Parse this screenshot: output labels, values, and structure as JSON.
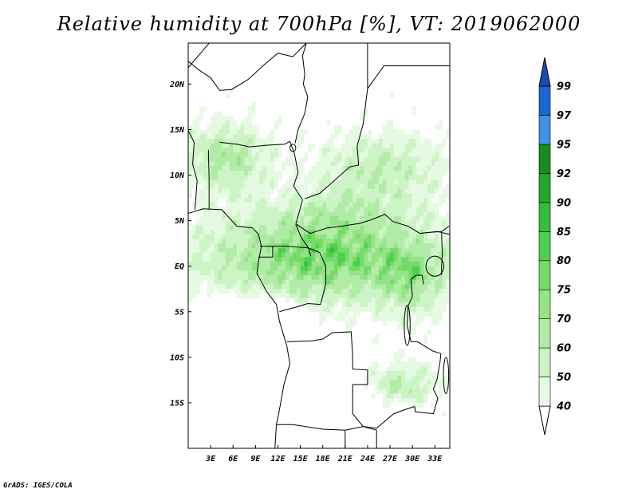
{
  "title": "Relative humidity at 700hPa [%], VT: 2019062000",
  "footer": "GrADS: IGES/COLA",
  "chart_data": {
    "type": "heatmap",
    "title": "Relative humidity at 700hPa [%], VT: 2019062000",
    "variable": "Relative humidity at 700hPa",
    "units": "%",
    "valid_time": "2019062000",
    "lon_range": [
      0,
      35
    ],
    "lat_range": [
      -20,
      24.5
    ],
    "x_ticks": [
      {
        "value": 3,
        "label": "3E"
      },
      {
        "value": 6,
        "label": "6E"
      },
      {
        "value": 9,
        "label": "9E"
      },
      {
        "value": 12,
        "label": "12E"
      },
      {
        "value": 15,
        "label": "15E"
      },
      {
        "value": 18,
        "label": "18E"
      },
      {
        "value": 21,
        "label": "21E"
      },
      {
        "value": 24,
        "label": "24E"
      },
      {
        "value": 27,
        "label": "27E"
      },
      {
        "value": 30,
        "label": "30E"
      },
      {
        "value": 33,
        "label": "33E"
      }
    ],
    "y_ticks": [
      {
        "value": 20,
        "label": "20N"
      },
      {
        "value": 15,
        "label": "15N"
      },
      {
        "value": 10,
        "label": "10N"
      },
      {
        "value": 5,
        "label": "5N"
      },
      {
        "value": 0,
        "label": "EQ"
      },
      {
        "value": -5,
        "label": "5S"
      },
      {
        "value": -10,
        "label": "10S"
      },
      {
        "value": -15,
        "label": "15S"
      }
    ],
    "colorbar": {
      "levels": [
        40,
        50,
        60,
        70,
        75,
        80,
        85,
        90,
        92,
        95,
        97,
        99
      ],
      "colors": [
        "#ffffff",
        "#e6fae3",
        "#cdf4c5",
        "#b1eca6",
        "#94e487",
        "#74da69",
        "#50cf4c",
        "#34bf38",
        "#22a82b",
        "#128f1f",
        "#3f90e6",
        "#1c66d4",
        "#1a4bb4"
      ],
      "extend": "both"
    }
  }
}
